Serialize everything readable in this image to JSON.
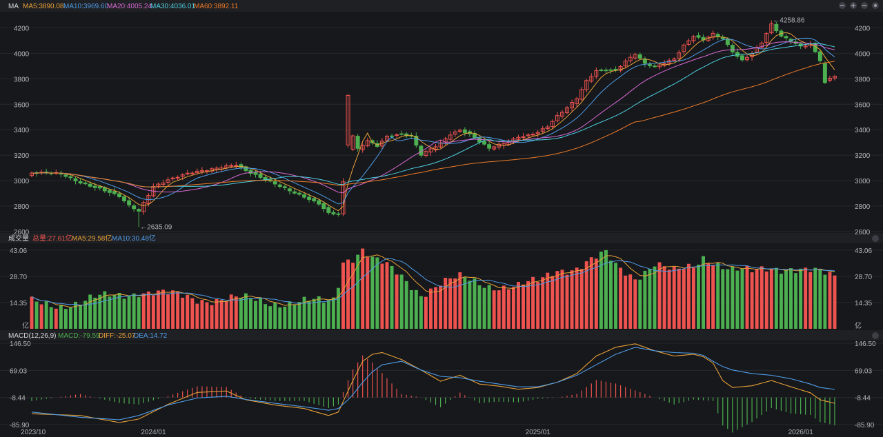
{
  "colors": {
    "up": "#ef5350",
    "down": "#4caf50",
    "ma5": "#e8a13a",
    "ma10": "#4f9ce8",
    "ma20": "#d96ad6",
    "ma30": "#4dd1e3",
    "ma60": "#ec7a2a",
    "macd_diff": "#e8a13a",
    "macd_dea": "#4f9ce8"
  },
  "header": {
    "price": {
      "label": "MA",
      "ma5": "MA5:3890.08",
      "ma10": "MA10:3969.60",
      "ma20": "MA20:4005.24",
      "ma30": "MA30:4036.01",
      "ma60": "MA60:3892.11"
    },
    "volume": {
      "label": "成交量",
      "total": "总量:27.61亿",
      "ma5": "MA5:29.58亿",
      "ma10": "MA10:30.48亿"
    },
    "macd": {
      "label": "MACD(12,26,9)",
      "macd": "MACD:-79.59",
      "diff": "DIFF:-25.07",
      "dea": "DEA:14.72"
    }
  },
  "chart_data": [
    {
      "type": "candlestick",
      "x_labels": [
        "2023/10",
        "2024/01",
        "2025/01",
        "2026/01"
      ],
      "ylim": [
        2600,
        4300
      ],
      "y_ticks": [
        2600,
        2800,
        3000,
        3200,
        3400,
        3600,
        3800,
        4000,
        4200
      ],
      "annotations": [
        {
          "text": "←2635.09",
          "value": 2635.09
        },
        {
          "text": "←4258.86",
          "value": 4258.86
        }
      ],
      "anchors": [
        [
          0,
          3060
        ],
        [
          6,
          3050
        ],
        [
          10,
          2990
        ],
        [
          14,
          2940
        ],
        [
          18,
          2870
        ],
        [
          20,
          2800
        ],
        [
          22,
          2760
        ],
        [
          25,
          2960
        ],
        [
          28,
          3010
        ],
        [
          32,
          3050
        ],
        [
          36,
          3080
        ],
        [
          40,
          3120
        ],
        [
          42,
          3130
        ],
        [
          44,
          3080
        ],
        [
          48,
          3000
        ],
        [
          52,
          2940
        ],
        [
          56,
          2880
        ],
        [
          59,
          2820
        ],
        [
          61,
          2740
        ],
        [
          63,
          2730
        ],
        [
          64,
          2980
        ],
        [
          65,
          3250
        ],
        [
          66,
          3350
        ],
        [
          67,
          3250
        ],
        [
          69,
          3320
        ],
        [
          71,
          3280
        ],
        [
          73,
          3350
        ],
        [
          76,
          3360
        ],
        [
          78,
          3340
        ],
        [
          80,
          3200
        ],
        [
          82,
          3250
        ],
        [
          84,
          3300
        ],
        [
          86,
          3370
        ],
        [
          88,
          3400
        ],
        [
          90,
          3360
        ],
        [
          92,
          3300
        ],
        [
          94,
          3250
        ],
        [
          96,
          3280
        ],
        [
          98,
          3310
        ],
        [
          100,
          3350
        ],
        [
          102,
          3360
        ],
        [
          104,
          3380
        ],
        [
          106,
          3420
        ],
        [
          108,
          3500
        ],
        [
          110,
          3570
        ],
        [
          112,
          3650
        ],
        [
          114,
          3790
        ],
        [
          116,
          3870
        ],
        [
          118,
          3870
        ],
        [
          120,
          3860
        ],
        [
          122,
          3930
        ],
        [
          124,
          3990
        ],
        [
          126,
          3920
        ],
        [
          128,
          3900
        ],
        [
          130,
          3930
        ],
        [
          132,
          3960
        ],
        [
          134,
          4060
        ],
        [
          136,
          4130
        ],
        [
          138,
          4100
        ],
        [
          140,
          4150
        ],
        [
          142,
          4120
        ],
        [
          144,
          4020
        ],
        [
          146,
          3950
        ],
        [
          148,
          4000
        ],
        [
          150,
          4080
        ],
        [
          152,
          4220
        ],
        [
          154,
          4130
        ],
        [
          156,
          4100
        ],
        [
          158,
          4060
        ],
        [
          160,
          4080
        ],
        [
          162,
          3950
        ],
        [
          163,
          3780
        ],
        [
          164,
          3800
        ],
        [
          165,
          3820
        ]
      ],
      "ma_length": [
        5,
        10,
        20,
        30,
        60
      ],
      "ma_colors": [
        "#e8a13a",
        "#4f9ce8",
        "#d96ad6",
        "#4dd1e3",
        "#ec7a2a"
      ]
    },
    {
      "type": "bar",
      "title": "成交量",
      "ylim": [
        0,
        46
      ],
      "y_ticks": [
        "14.35",
        "28.70",
        "43.06",
        "亿"
      ],
      "anchors": [
        [
          0,
          14
        ],
        [
          10,
          14
        ],
        [
          18,
          19
        ],
        [
          22,
          21
        ],
        [
          28,
          18
        ],
        [
          40,
          16
        ],
        [
          50,
          15
        ],
        [
          60,
          14
        ],
        [
          62,
          16
        ],
        [
          63,
          25
        ],
        [
          64,
          38
        ],
        [
          66,
          40
        ],
        [
          68,
          44
        ],
        [
          70,
          38
        ],
        [
          72,
          35
        ],
        [
          76,
          28
        ],
        [
          80,
          20
        ],
        [
          84,
          25
        ],
        [
          88,
          27
        ],
        [
          92,
          25
        ],
        [
          96,
          24
        ],
        [
          100,
          23
        ],
        [
          104,
          25
        ],
        [
          108,
          33
        ],
        [
          112,
          34
        ],
        [
          116,
          38
        ],
        [
          118,
          40
        ],
        [
          120,
          34
        ],
        [
          124,
          29
        ],
        [
          128,
          36
        ],
        [
          132,
          30
        ],
        [
          136,
          34
        ],
        [
          138,
          40
        ],
        [
          140,
          38
        ],
        [
          144,
          32
        ],
        [
          148,
          30
        ],
        [
          152,
          34
        ],
        [
          156,
          34
        ],
        [
          160,
          31
        ],
        [
          163,
          29
        ],
        [
          165,
          28
        ]
      ]
    },
    {
      "type": "bar",
      "title": "MACD(12,26,9)",
      "ylim": [
        -85.9,
        146.5
      ],
      "y_ticks": [
        "-85.90",
        "-8.44",
        "69.03",
        "146.50"
      ],
      "diff_anchors": [
        [
          0,
          -55
        ],
        [
          10,
          -60
        ],
        [
          18,
          -80
        ],
        [
          22,
          -70
        ],
        [
          28,
          -28
        ],
        [
          34,
          6
        ],
        [
          40,
          10
        ],
        [
          44,
          -15
        ],
        [
          50,
          -30
        ],
        [
          56,
          -40
        ],
        [
          61,
          -60
        ],
        [
          63,
          -50
        ],
        [
          65,
          10
        ],
        [
          66,
          40
        ],
        [
          68,
          95
        ],
        [
          70,
          115
        ],
        [
          72,
          120
        ],
        [
          76,
          100
        ],
        [
          80,
          70
        ],
        [
          84,
          38
        ],
        [
          88,
          55
        ],
        [
          92,
          30
        ],
        [
          96,
          24
        ],
        [
          100,
          15
        ],
        [
          104,
          20
        ],
        [
          108,
          35
        ],
        [
          112,
          60
        ],
        [
          116,
          110
        ],
        [
          120,
          135
        ],
        [
          124,
          145
        ],
        [
          128,
          125
        ],
        [
          132,
          110
        ],
        [
          136,
          115
        ],
        [
          138,
          108
        ],
        [
          140,
          90
        ],
        [
          142,
          40
        ],
        [
          144,
          20
        ],
        [
          148,
          25
        ],
        [
          152,
          40
        ],
        [
          156,
          22
        ],
        [
          160,
          5
        ],
        [
          162,
          -15
        ],
        [
          165,
          -25
        ]
      ],
      "dea_anchors": [
        [
          0,
          -50
        ],
        [
          10,
          -65
        ],
        [
          18,
          -72
        ],
        [
          22,
          -60
        ],
        [
          28,
          -30
        ],
        [
          34,
          -10
        ],
        [
          40,
          -5
        ],
        [
          44,
          -14
        ],
        [
          50,
          -25
        ],
        [
          56,
          -35
        ],
        [
          61,
          -45
        ],
        [
          63,
          -40
        ],
        [
          65,
          -15
        ],
        [
          66,
          0
        ],
        [
          68,
          35
        ],
        [
          70,
          65
        ],
        [
          72,
          85
        ],
        [
          76,
          95
        ],
        [
          80,
          70
        ],
        [
          84,
          52
        ],
        [
          88,
          48
        ],
        [
          92,
          38
        ],
        [
          96,
          30
        ],
        [
          100,
          22
        ],
        [
          104,
          22
        ],
        [
          108,
          35
        ],
        [
          112,
          55
        ],
        [
          116,
          85
        ],
        [
          120,
          115
        ],
        [
          124,
          135
        ],
        [
          128,
          125
        ],
        [
          132,
          120
        ],
        [
          136,
          118
        ],
        [
          138,
          112
        ],
        [
          140,
          95
        ],
        [
          142,
          80
        ],
        [
          144,
          70
        ],
        [
          148,
          60
        ],
        [
          152,
          55
        ],
        [
          156,
          45
        ],
        [
          160,
          30
        ],
        [
          162,
          20
        ],
        [
          165,
          14.72
        ]
      ]
    }
  ]
}
